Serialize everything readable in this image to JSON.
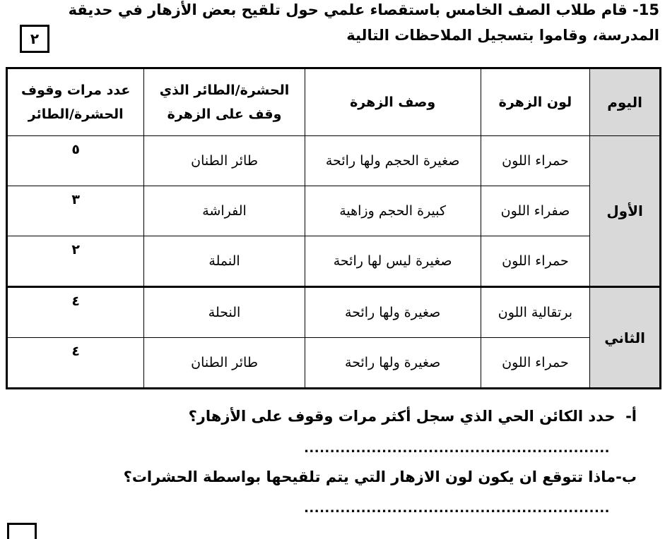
{
  "question": {
    "number": "15-",
    "lines": [
      "قام طلاب الصف الخامس باستقصاء علمي حول تلقيح بعض الأزهار في حديقة",
      "المدرسة، وقاموا بتسجيل الملاحظات التالية"
    ],
    "mark": "٢"
  },
  "table": {
    "headers": [
      "اليوم",
      "لون الزهرة",
      "وصف الزهرة",
      "الحشرة/الطائر الذي وقف على الزهرة",
      "عدد مرات وقوف الحشرة/الطائر"
    ],
    "groups": [
      {
        "day": "الأول",
        "rows": [
          [
            "حمراء اللون",
            "صغيرة الحجم ولها رائحة",
            "طائر الطنان",
            "٥"
          ],
          [
            "صفراء اللون",
            "كبيرة الحجم وزاهية",
            "الفراشة",
            "٣"
          ],
          [
            "حمراء اللون",
            "صغيرة ليس لها رائحة",
            "النملة",
            "٢"
          ]
        ]
      },
      {
        "day": "الثاني",
        "rows": [
          [
            "برتقالية اللون",
            "صغيرة ولها رائحة",
            "النحلة",
            "٤"
          ],
          [
            "حمراء اللون",
            "صغيرة ولها رائحة",
            "طائر الطنان",
            "٤"
          ]
        ]
      }
    ]
  },
  "sub_questions": [
    {
      "label": "أ-",
      "text": "حدد الكائن الحي الذي سجل أكثر مرات وقوف على الأزهار؟",
      "answer": "..........................................................."
    },
    {
      "label": "ب-",
      "text": "ماذا تتوقع ان يكون لون الازهار التي يتم تلقيحها بواسطة الحشرات؟",
      "answer": "..........................................................."
    }
  ]
}
